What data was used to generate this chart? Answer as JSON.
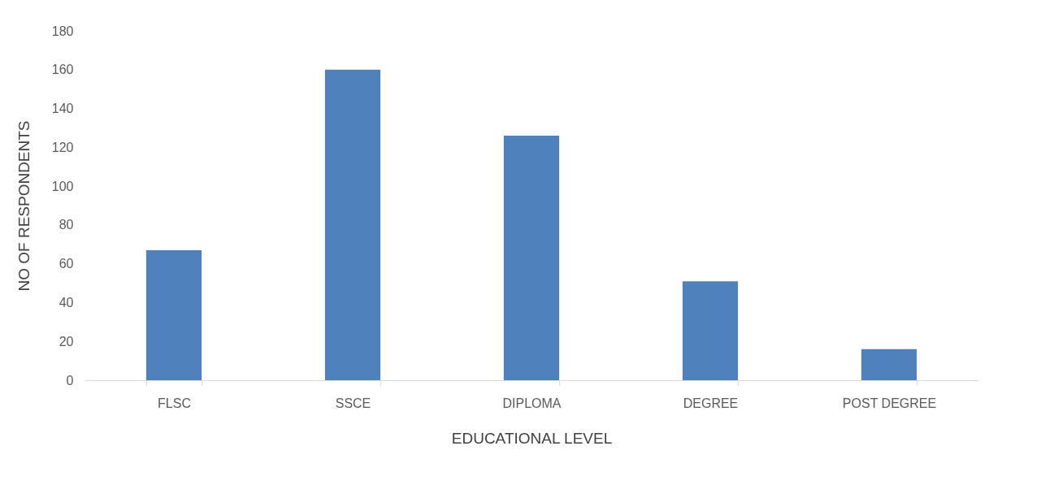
{
  "chart_data": {
    "type": "bar",
    "xlabel": "EDUCATIONAL LEVEL",
    "ylabel": "NO OF RESPONDENTS",
    "categories": [
      "FLSC",
      "SSCE",
      "DIPLOMA",
      "DEGREE",
      "POST DEGREE"
    ],
    "values": [
      67,
      160,
      126,
      51,
      16
    ],
    "color": "#4f81bd",
    "ylim": [
      0,
      180
    ],
    "yticks": [
      0,
      20,
      40,
      60,
      80,
      100,
      120,
      140,
      160,
      180
    ],
    "grid": false
  }
}
